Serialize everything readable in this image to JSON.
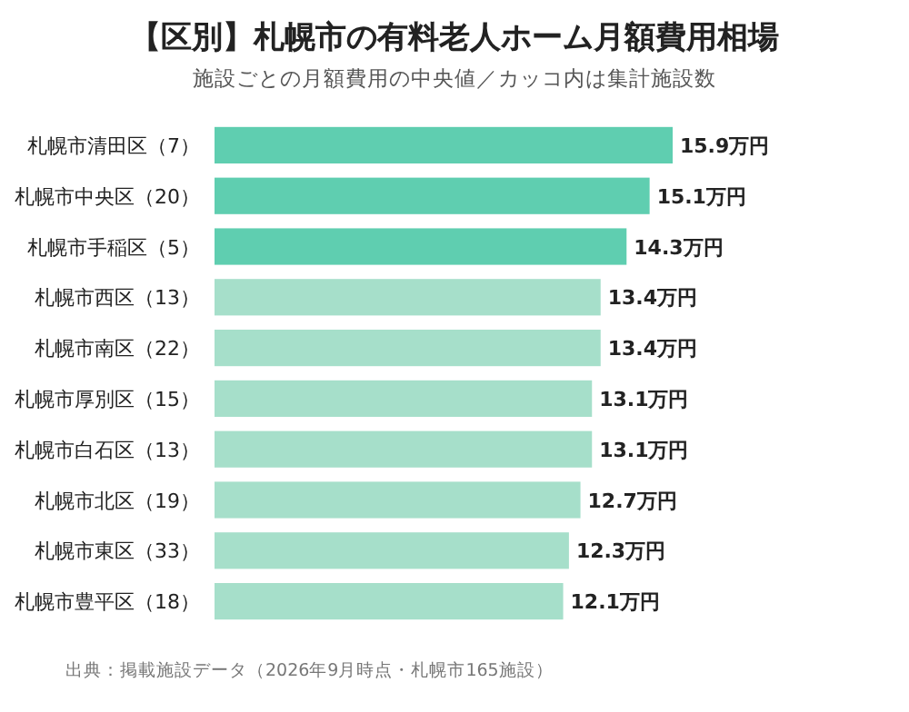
{
  "chart_data": {
    "type": "bar",
    "orientation": "horizontal",
    "title": "【区別】札幌市の有料老人ホーム月額費用相場",
    "subtitle": "施設ごとの月額費用の中央値／カッコ内は集計施設数",
    "categories": [
      "札幌市清田区（7）",
      "札幌市中央区（20）",
      "札幌市手稲区（5）",
      "札幌市西区（13）",
      "札幌市南区（22）",
      "札幌市厚別区（15）",
      "札幌市白石区（13）",
      "札幌市北区（19）",
      "札幌市東区（33）",
      "札幌市豊平区（18）"
    ],
    "values": [
      15.9,
      15.1,
      14.3,
      13.4,
      13.4,
      13.1,
      13.1,
      12.7,
      12.3,
      12.1
    ],
    "value_labels": [
      "15.9万円",
      "15.1万円",
      "14.3万円",
      "13.4万円",
      "13.4万円",
      "13.1万円",
      "13.1万円",
      "12.7万円",
      "12.3万円",
      "12.1万円"
    ],
    "colors": [
      "#5fceb0",
      "#5fceb0",
      "#5fceb0",
      "#a6dfca",
      "#a6dfca",
      "#a6dfca",
      "#a6dfca",
      "#a6dfca",
      "#a6dfca",
      "#a6dfca"
    ],
    "annotations": [
      "出典：掲載施設データ（2026年9月時点・札幌市165施設）"
    ],
    "grid": false
  }
}
